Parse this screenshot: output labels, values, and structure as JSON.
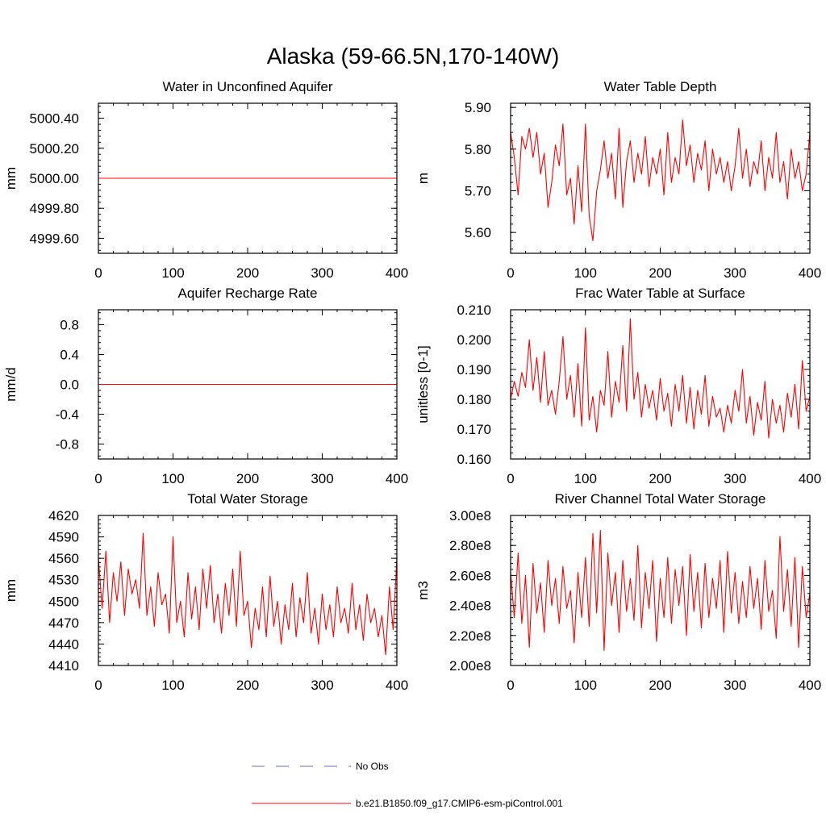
{
  "figure": {
    "title": "Alaska (59-66.5N,170-140W)"
  },
  "legend": {
    "entries": [
      {
        "label": "No Obs",
        "color": "#6a6ac8",
        "style": "dashed"
      },
      {
        "label": "b.e21.B1850.f09_g17.CMIP6-esm-piControl.001",
        "color": "#ff0000",
        "style": "solid"
      }
    ]
  },
  "chart_data": [
    {
      "type": "line",
      "title": "Water in Unconfined Aquifer",
      "xlabel": "",
      "ylabel": "mm",
      "xlim": [
        0,
        400
      ],
      "ylim": [
        4999.5,
        5000.5
      ],
      "xticks": [
        0,
        100,
        200,
        300,
        400
      ],
      "xtick_labels": [
        "0",
        "100",
        "200",
        "300",
        "400"
      ],
      "yticks": [
        4999.6,
        4999.8,
        5000.0,
        5000.2,
        5000.4
      ],
      "ytick_labels": [
        "4999.60",
        "4999.80",
        "5000.00",
        "5000.20",
        "5000.40"
      ],
      "series": [
        {
          "name": "b.e21.B1850.f09_g17.CMIP6-esm-piControl.001",
          "color": "#ff0000",
          "x": [
            0,
            400
          ],
          "y": [
            5000.0,
            5000.0
          ]
        }
      ]
    },
    {
      "type": "line",
      "title": "Water Table Depth",
      "xlabel": "",
      "ylabel": "m",
      "xlim": [
        0,
        400
      ],
      "ylim": [
        5.55,
        5.91
      ],
      "xticks": [
        0,
        100,
        200,
        300,
        400
      ],
      "xtick_labels": [
        "0",
        "100",
        "200",
        "300",
        "400"
      ],
      "yticks": [
        5.6,
        5.7,
        5.8,
        5.9
      ],
      "ytick_labels": [
        "5.60",
        "5.70",
        "5.80",
        "5.90"
      ],
      "series": [
        {
          "name": "b.e21.B1850.f09_g17.CMIP6-esm-piControl.001",
          "color": "#ff0000",
          "x": [
            0,
            5,
            10,
            15,
            20,
            25,
            30,
            35,
            40,
            45,
            50,
            55,
            60,
            65,
            70,
            75,
            80,
            85,
            90,
            95,
            100,
            105,
            110,
            115,
            120,
            125,
            130,
            135,
            140,
            145,
            150,
            155,
            160,
            165,
            170,
            175,
            180,
            185,
            190,
            195,
            200,
            205,
            210,
            215,
            220,
            225,
            230,
            235,
            240,
            245,
            250,
            255,
            260,
            265,
            270,
            275,
            280,
            285,
            290,
            295,
            300,
            305,
            310,
            315,
            320,
            325,
            330,
            335,
            340,
            345,
            350,
            355,
            360,
            365,
            370,
            375,
            380,
            385,
            390,
            395,
            400
          ],
          "y": [
            5.84,
            5.78,
            5.69,
            5.83,
            5.8,
            5.85,
            5.78,
            5.84,
            5.74,
            5.79,
            5.66,
            5.72,
            5.81,
            5.76,
            5.86,
            5.69,
            5.73,
            5.62,
            5.76,
            5.65,
            5.86,
            5.64,
            5.58,
            5.7,
            5.75,
            5.82,
            5.73,
            5.79,
            5.68,
            5.85,
            5.66,
            5.77,
            5.82,
            5.72,
            5.79,
            5.74,
            5.83,
            5.71,
            5.78,
            5.74,
            5.8,
            5.69,
            5.84,
            5.72,
            5.78,
            5.74,
            5.87,
            5.76,
            5.81,
            5.72,
            5.79,
            5.75,
            5.82,
            5.7,
            5.8,
            5.74,
            5.78,
            5.72,
            5.77,
            5.7,
            5.76,
            5.85,
            5.73,
            5.8,
            5.71,
            5.77,
            5.74,
            5.82,
            5.7,
            5.78,
            5.73,
            5.84,
            5.72,
            5.77,
            5.68,
            5.8,
            5.73,
            5.77,
            5.7,
            5.74,
            5.84
          ]
        }
      ]
    },
    {
      "type": "line",
      "title": "Aquifer Recharge Rate",
      "xlabel": "",
      "ylabel": "mm/d",
      "xlim": [
        0,
        400
      ],
      "ylim": [
        -1.0,
        1.0
      ],
      "xticks": [
        0,
        100,
        200,
        300,
        400
      ],
      "xtick_labels": [
        "0",
        "100",
        "200",
        "300",
        "400"
      ],
      "yticks": [
        -0.8,
        -0.4,
        0.0,
        0.4,
        0.8
      ],
      "ytick_labels": [
        "-0.8",
        "-0.4",
        "0.0",
        "0.4",
        "0.8"
      ],
      "series": [
        {
          "name": "b.e21.B1850.f09_g17.CMIP6-esm-piControl.001",
          "color": "#ff0000",
          "x": [
            0,
            400
          ],
          "y": [
            0.0,
            0.0
          ]
        }
      ]
    },
    {
      "type": "line",
      "title": "Frac Water Table at Surface",
      "xlabel": "",
      "ylabel": "unitless [0-1]",
      "xlim": [
        0,
        400
      ],
      "ylim": [
        0.16,
        0.21
      ],
      "xticks": [
        0,
        100,
        200,
        300,
        400
      ],
      "xtick_labels": [
        "0",
        "100",
        "200",
        "300",
        "400"
      ],
      "yticks": [
        0.16,
        0.17,
        0.18,
        0.19,
        0.2,
        0.21
      ],
      "ytick_labels": [
        "0.160",
        "0.170",
        "0.180",
        "0.190",
        "0.200",
        "0.210"
      ],
      "series": [
        {
          "name": "b.e21.B1850.f09_g17.CMIP6-esm-piControl.001",
          "color": "#ff0000",
          "x": [
            0,
            5,
            10,
            15,
            20,
            25,
            30,
            35,
            40,
            45,
            50,
            55,
            60,
            65,
            70,
            75,
            80,
            85,
            90,
            95,
            100,
            105,
            110,
            115,
            120,
            125,
            130,
            135,
            140,
            145,
            150,
            155,
            160,
            165,
            170,
            175,
            180,
            185,
            190,
            195,
            200,
            205,
            210,
            215,
            220,
            225,
            230,
            235,
            240,
            245,
            250,
            255,
            260,
            265,
            270,
            275,
            280,
            285,
            290,
            295,
            300,
            305,
            310,
            315,
            320,
            325,
            330,
            335,
            340,
            345,
            350,
            355,
            360,
            365,
            370,
            375,
            380,
            385,
            390,
            395,
            400
          ],
          "y": [
            0.18,
            0.186,
            0.181,
            0.189,
            0.184,
            0.2,
            0.183,
            0.194,
            0.179,
            0.196,
            0.178,
            0.183,
            0.175,
            0.186,
            0.201,
            0.18,
            0.188,
            0.174,
            0.192,
            0.171,
            0.204,
            0.173,
            0.181,
            0.169,
            0.183,
            0.178,
            0.196,
            0.174,
            0.186,
            0.179,
            0.198,
            0.176,
            0.207,
            0.18,
            0.189,
            0.174,
            0.185,
            0.177,
            0.183,
            0.173,
            0.187,
            0.176,
            0.182,
            0.171,
            0.185,
            0.176,
            0.188,
            0.172,
            0.184,
            0.17,
            0.183,
            0.175,
            0.188,
            0.171,
            0.181,
            0.174,
            0.177,
            0.169,
            0.178,
            0.172,
            0.183,
            0.176,
            0.19,
            0.172,
            0.181,
            0.168,
            0.179,
            0.173,
            0.186,
            0.167,
            0.18,
            0.172,
            0.178,
            0.169,
            0.182,
            0.174,
            0.185,
            0.17,
            0.193,
            0.176,
            0.181
          ]
        }
      ]
    },
    {
      "type": "line",
      "title": "Total Water Storage",
      "xlabel": "",
      "ylabel": "mm",
      "xlim": [
        0,
        400
      ],
      "ylim": [
        4410,
        4620
      ],
      "xticks": [
        0,
        100,
        200,
        300,
        400
      ],
      "xtick_labels": [
        "0",
        "100",
        "200",
        "300",
        "400"
      ],
      "yticks": [
        4410,
        4440,
        4470,
        4500,
        4530,
        4560,
        4590,
        4620
      ],
      "ytick_labels": [
        "4410",
        "4440",
        "4470",
        "4500",
        "4530",
        "4560",
        "4590",
        "4620"
      ],
      "series": [
        {
          "name": "b.e21.B1850.f09_g17.CMIP6-esm-piControl.001",
          "color": "#ff0000",
          "x": [
            0,
            5,
            10,
            15,
            20,
            25,
            30,
            35,
            40,
            45,
            50,
            55,
            60,
            65,
            70,
            75,
            80,
            85,
            90,
            95,
            100,
            105,
            110,
            115,
            120,
            125,
            130,
            135,
            140,
            145,
            150,
            155,
            160,
            165,
            170,
            175,
            180,
            185,
            190,
            195,
            200,
            205,
            210,
            215,
            220,
            225,
            230,
            235,
            240,
            245,
            250,
            255,
            260,
            265,
            270,
            275,
            280,
            285,
            290,
            295,
            300,
            305,
            310,
            315,
            320,
            325,
            330,
            335,
            340,
            345,
            350,
            355,
            360,
            365,
            370,
            375,
            380,
            385,
            390,
            395,
            400
          ],
          "y": [
            4560,
            4490,
            4570,
            4470,
            4540,
            4500,
            4555,
            4480,
            4545,
            4510,
            4530,
            4490,
            4595,
            4480,
            4520,
            4465,
            4540,
            4495,
            4510,
            4455,
            4590,
            4470,
            4500,
            4450,
            4540,
            4475,
            4520,
            4460,
            4545,
            4490,
            4550,
            4470,
            4510,
            4455,
            4525,
            4480,
            4545,
            4465,
            4570,
            4480,
            4500,
            4435,
            4490,
            4460,
            4520,
            4450,
            4535,
            4465,
            4500,
            4440,
            4495,
            4460,
            4525,
            4450,
            4505,
            4470,
            4540,
            4455,
            4490,
            4440,
            4510,
            4460,
            4495,
            4450,
            4520,
            4470,
            4490,
            4455,
            4525,
            4460,
            4495,
            4445,
            4510,
            4470,
            4490,
            4450,
            4480,
            4425,
            4520,
            4460,
            4560
          ]
        }
      ]
    },
    {
      "type": "line",
      "title": "River Channel Total Water Storage",
      "xlabel": "",
      "ylabel": "m3",
      "xlim": [
        0,
        400
      ],
      "ylim": [
        200000000,
        300000000
      ],
      "xticks": [
        0,
        100,
        200,
        300,
        400
      ],
      "xtick_labels": [
        "0",
        "100",
        "200",
        "300",
        "400"
      ],
      "yticks": [
        200000000,
        220000000,
        240000000,
        260000000,
        280000000,
        300000000
      ],
      "ytick_labels": [
        "2.00e8",
        "2.20e8",
        "2.40e8",
        "2.60e8",
        "2.80e8",
        "3.00e8"
      ],
      "series": [
        {
          "name": "b.e21.B1850.f09_g17.CMIP6-esm-piControl.001",
          "color": "#ff0000",
          "x": [
            0,
            5,
            10,
            15,
            20,
            25,
            30,
            35,
            40,
            45,
            50,
            55,
            60,
            65,
            70,
            75,
            80,
            85,
            90,
            95,
            100,
            105,
            110,
            115,
            120,
            125,
            130,
            135,
            140,
            145,
            150,
            155,
            160,
            165,
            170,
            175,
            180,
            185,
            190,
            195,
            200,
            205,
            210,
            215,
            220,
            225,
            230,
            235,
            240,
            245,
            250,
            255,
            260,
            265,
            270,
            275,
            280,
            285,
            290,
            295,
            300,
            305,
            310,
            315,
            320,
            325,
            330,
            335,
            340,
            345,
            350,
            355,
            360,
            365,
            370,
            375,
            380,
            385,
            390,
            395,
            400
          ],
          "y": [
            262000000,
            232000000,
            275000000,
            228000000,
            260000000,
            212000000,
            268000000,
            235000000,
            255000000,
            222000000,
            270000000,
            240000000,
            258000000,
            228000000,
            266000000,
            238000000,
            250000000,
            215000000,
            262000000,
            232000000,
            272000000,
            226000000,
            288000000,
            235000000,
            290000000,
            210000000,
            275000000,
            240000000,
            262000000,
            222000000,
            270000000,
            236000000,
            258000000,
            230000000,
            280000000,
            225000000,
            262000000,
            238000000,
            270000000,
            216000000,
            258000000,
            232000000,
            272000000,
            228000000,
            264000000,
            240000000,
            266000000,
            220000000,
            274000000,
            236000000,
            262000000,
            225000000,
            268000000,
            232000000,
            258000000,
            238000000,
            270000000,
            222000000,
            276000000,
            235000000,
            262000000,
            228000000,
            256000000,
            232000000,
            266000000,
            238000000,
            258000000,
            224000000,
            270000000,
            236000000,
            250000000,
            218000000,
            286000000,
            236000000,
            264000000,
            226000000,
            272000000,
            212000000,
            266000000,
            232000000,
            248000000
          ]
        }
      ]
    }
  ]
}
